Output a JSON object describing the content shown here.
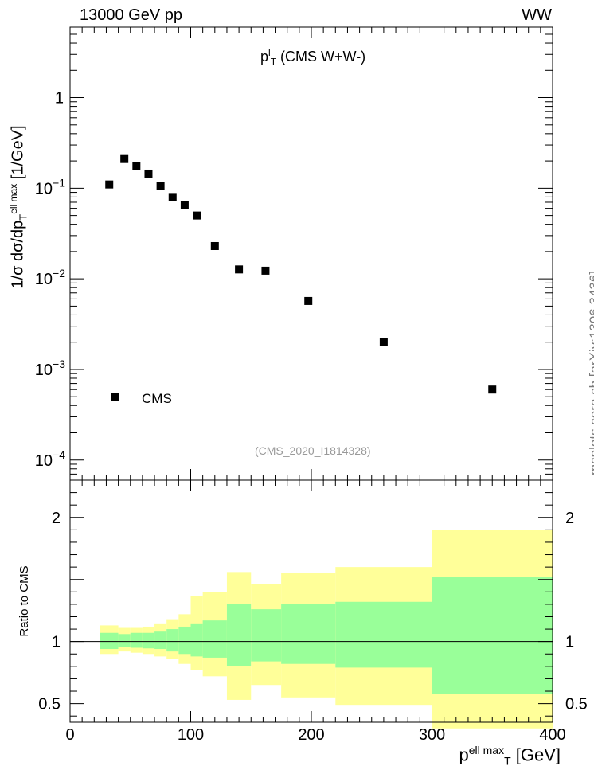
{
  "header": {
    "energy_label": "13000 GeV pp",
    "process_label": "WW"
  },
  "side_label": "mcplots.cern.ch [arXiv:1306.3436]",
  "chart_data": [
    {
      "type": "scatter",
      "title_main": "p",
      "title_sup": "l",
      "title_sub": "T",
      "title_rest": " (CMS W+W-)",
      "analysis": "(CMS_2020_I1814328)",
      "ylabel_main": "1/σ dσ/dp",
      "ylabel_sub": "T",
      "ylabel_sup": "ell max",
      "ylabel_unit": " [1/GeV]",
      "yscale": "log",
      "xlim": [
        0,
        400
      ],
      "ylim": [
        6e-05,
        6
      ],
      "ytick_labels": [
        {
          "value": 0.0001,
          "base": "10",
          "exp": "−4"
        },
        {
          "value": 0.001,
          "base": "10",
          "exp": "−3"
        },
        {
          "value": 0.01,
          "base": "10",
          "exp": "−2"
        },
        {
          "value": 0.1,
          "base": "10",
          "exp": "−1"
        },
        {
          "value": 1,
          "base": "1",
          "exp": ""
        }
      ],
      "legend": {
        "placement": "bottom-left",
        "entries": [
          "CMS"
        ]
      },
      "series": [
        {
          "name": "CMS",
          "color": "#000000",
          "points": [
            {
              "x": 32.5,
              "y": 0.11
            },
            {
              "x": 45,
              "y": 0.21
            },
            {
              "x": 55,
              "y": 0.175
            },
            {
              "x": 65,
              "y": 0.145
            },
            {
              "x": 75,
              "y": 0.107
            },
            {
              "x": 85,
              "y": 0.08
            },
            {
              "x": 95,
              "y": 0.065
            },
            {
              "x": 105,
              "y": 0.05
            },
            {
              "x": 120,
              "y": 0.023
            },
            {
              "x": 140,
              "y": 0.0127
            },
            {
              "x": 162,
              "y": 0.0123
            },
            {
              "x": 197.5,
              "y": 0.0057
            },
            {
              "x": 260,
              "y": 0.002
            },
            {
              "x": 350,
              "y": 0.0006
            }
          ]
        }
      ]
    },
    {
      "type": "area",
      "ylabel": "Ratio to CMS",
      "xlabel_main": "p",
      "xlabel_sub": "T",
      "xlabel_sup": "ell max",
      "xlabel_unit": " [GeV]",
      "xlim": [
        0,
        400
      ],
      "ylim": [
        0.35,
        2.3
      ],
      "xticks": [
        0,
        100,
        200,
        300,
        400
      ],
      "yticks_labeled": [
        0.5,
        1,
        2
      ],
      "reference_line": 1,
      "colors": {
        "inner_band": "#99ff99",
        "outer_band": "#ffff99"
      },
      "bins": [
        {
          "x0": 25,
          "x1": 40,
          "inner": [
            0.94,
            1.07
          ],
          "outer": [
            0.9,
            1.13
          ]
        },
        {
          "x0": 40,
          "x1": 50,
          "inner": [
            0.955,
            1.06
          ],
          "outer": [
            0.92,
            1.11
          ]
        },
        {
          "x0": 50,
          "x1": 60,
          "inner": [
            0.95,
            1.07
          ],
          "outer": [
            0.91,
            1.11
          ]
        },
        {
          "x0": 60,
          "x1": 70,
          "inner": [
            0.945,
            1.07
          ],
          "outer": [
            0.9,
            1.12
          ]
        },
        {
          "x0": 70,
          "x1": 80,
          "inner": [
            0.94,
            1.08
          ],
          "outer": [
            0.88,
            1.14
          ]
        },
        {
          "x0": 80,
          "x1": 90,
          "inner": [
            0.92,
            1.1
          ],
          "outer": [
            0.86,
            1.18
          ]
        },
        {
          "x0": 90,
          "x1": 100,
          "inner": [
            0.9,
            1.12
          ],
          "outer": [
            0.82,
            1.22
          ]
        },
        {
          "x0": 100,
          "x1": 110,
          "inner": [
            0.88,
            1.14
          ],
          "outer": [
            0.77,
            1.37
          ]
        },
        {
          "x0": 110,
          "x1": 130,
          "inner": [
            0.87,
            1.17
          ],
          "outer": [
            0.72,
            1.4
          ]
        },
        {
          "x0": 130,
          "x1": 150,
          "inner": [
            0.8,
            1.3
          ],
          "outer": [
            0.53,
            1.56
          ]
        },
        {
          "x0": 150,
          "x1": 175,
          "inner": [
            0.84,
            1.26
          ],
          "outer": [
            0.65,
            1.46
          ]
        },
        {
          "x0": 175,
          "x1": 220,
          "inner": [
            0.82,
            1.3
          ],
          "outer": [
            0.55,
            1.55
          ]
        },
        {
          "x0": 220,
          "x1": 300,
          "inner": [
            0.79,
            1.32
          ],
          "outer": [
            0.49,
            1.6
          ]
        },
        {
          "x0": 300,
          "x1": 400,
          "inner": [
            0.58,
            1.52
          ],
          "outer": [
            0.3,
            1.9
          ]
        }
      ]
    }
  ]
}
